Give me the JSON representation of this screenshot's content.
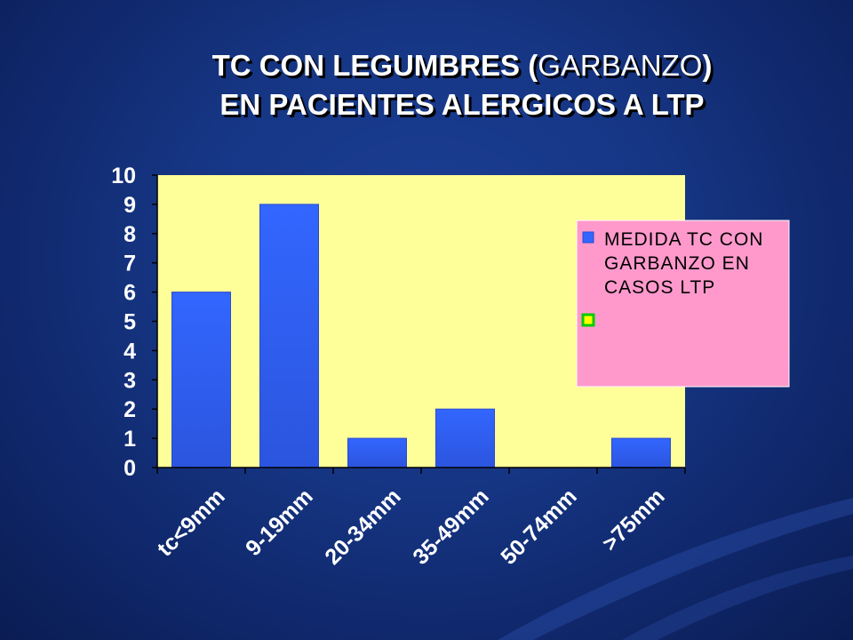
{
  "title": {
    "line1_a": "TC  CON LEGUMBRES (",
    "line1_b": "GARBANZO",
    "line1_c": ")",
    "line2": "EN PACIENTES ALERGICOS A LTP"
  },
  "colors": {
    "plot_background": "#ffff99",
    "bar": "#3366ff",
    "legend_background": "#ff99cc",
    "legend_marker_2_fill": "#ffff00",
    "legend_marker_2_border": "#00cc00",
    "axis_text": "#ffffff"
  },
  "chart_data": {
    "type": "bar",
    "title": "",
    "xlabel": "",
    "ylabel": "",
    "categories": [
      "tc<9mm",
      "9-19mm",
      "20-34mm",
      "35-49mm",
      "50-74mm",
      ">75mm"
    ],
    "series": [
      {
        "name": "MEDIDA TC CON GARBANZO EN CASOS LTP",
        "values": [
          6,
          9,
          1,
          2,
          0,
          1
        ]
      }
    ],
    "ylim": [
      0,
      10
    ],
    "yticks": [
      "0",
      "1",
      "2",
      "3",
      "4",
      "5",
      "6",
      "7",
      "8",
      "9",
      "10"
    ],
    "grid": false,
    "legend_position": "right",
    "legend": [
      {
        "label": "MEDIDA TC CON\nGARBANZO EN\nCASOS LTP",
        "lines": [
          "MEDIDA TC CON",
          "GARBANZO EN",
          "CASOS LTP"
        ]
      },
      {
        "label": "",
        "lines": []
      }
    ]
  }
}
